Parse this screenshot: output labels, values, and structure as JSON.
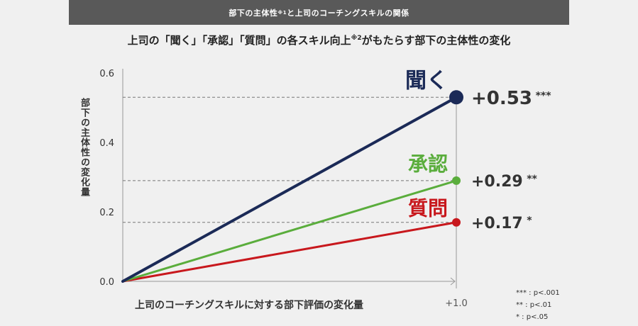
{
  "header": {
    "title_main": "部下の主体性",
    "title_note": "※1",
    "title_rest": "と上司のコーチングスキルの関係"
  },
  "subtitle": {
    "main": "上司の「聞く」「承認」「質問」の各スキル向上",
    "note": "※2",
    "rest": "がもたらす部下の主体性の変化"
  },
  "chart_data": {
    "type": "line",
    "ylabel": "部下の主体性の変化量",
    "xlabel": "上司のコーチングスキルに対する部下評価の変化量",
    "x_ticks": [
      "+1.0"
    ],
    "y_ticks": [
      "0.0",
      "0.2",
      "0.4",
      "0.6"
    ],
    "xlim": [
      0,
      1.0
    ],
    "ylim": [
      0,
      0.6
    ],
    "series": [
      {
        "name": "聞く",
        "x": [
          0,
          1.0
        ],
        "y": [
          0,
          0.53
        ],
        "color": "#1b2a57",
        "value_label": "+0.53",
        "stars": "***"
      },
      {
        "name": "承認",
        "x": [
          0,
          1.0
        ],
        "y": [
          0,
          0.29
        ],
        "color": "#5aad3c",
        "value_label": "+0.29",
        "stars": "**"
      },
      {
        "name": "質問",
        "x": [
          0,
          1.0
        ],
        "y": [
          0,
          0.17
        ],
        "color": "#c8181d",
        "value_label": "+0.17",
        "stars": "*"
      }
    ],
    "significance_legend": [
      "*** : p<.001",
      "** : p<.01",
      "* : p<.05"
    ]
  }
}
